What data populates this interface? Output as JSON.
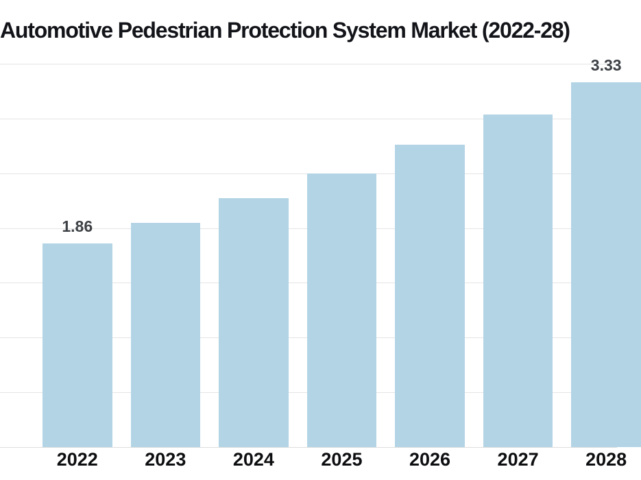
{
  "title": "Automotive Pedestrian Protection System Market (2022-28)",
  "chart_data": {
    "type": "bar",
    "title": "Automotive Pedestrian Protection System Market (2022-28)",
    "categories": [
      "2022",
      "2023",
      "2024",
      "2025",
      "2026",
      "2027",
      "2028"
    ],
    "values": [
      1.86,
      2.05,
      2.27,
      2.5,
      2.76,
      3.04,
      3.33
    ],
    "bar_labels": [
      "1.86",
      "",
      "",
      "",
      "",
      "",
      "3.33"
    ],
    "xlabel": "",
    "ylabel": "",
    "ylim": [
      0,
      3.5
    ],
    "grid_interval": 0.5,
    "grid": "horizontal",
    "legend": "none"
  },
  "colors": {
    "background": "#ffffff",
    "bar": "#b3d4e5",
    "gridline": "#e4e4e4",
    "axis_line": "#dedede",
    "title_text": "#131419",
    "value_label_text": "#3d4145",
    "axis_label_text": "#0d0e10"
  }
}
